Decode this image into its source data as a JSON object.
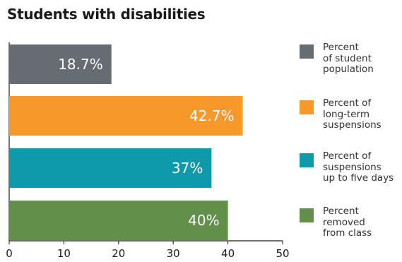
{
  "chart_data": {
    "type": "bar",
    "orientation": "horizontal",
    "title": "Students with disabilities",
    "categories": [
      "Percent of student population",
      "Percent of long-term suspensions",
      "Percent of suspensions up to five days",
      "Percent removed from class"
    ],
    "values": [
      18.7,
      42.7,
      37,
      40
    ],
    "value_labels": [
      "18.7%",
      "42.7%",
      "37%",
      "40%"
    ],
    "colors": [
      "#656c72",
      "#f7982a",
      "#0e9aaa",
      "#62904a"
    ],
    "xlim": [
      0,
      50
    ],
    "xticks": [
      "0",
      "10",
      "20",
      "30",
      "40",
      "50"
    ],
    "legend_placement": "right",
    "legend": [
      [
        "Percent",
        "of student",
        "population"
      ],
      [
        "Percent of",
        "long-term",
        "suspensions"
      ],
      [
        "Percent of",
        "suspensions",
        "up to five days"
      ],
      [
        "Percent",
        "removed",
        "from class"
      ]
    ]
  }
}
